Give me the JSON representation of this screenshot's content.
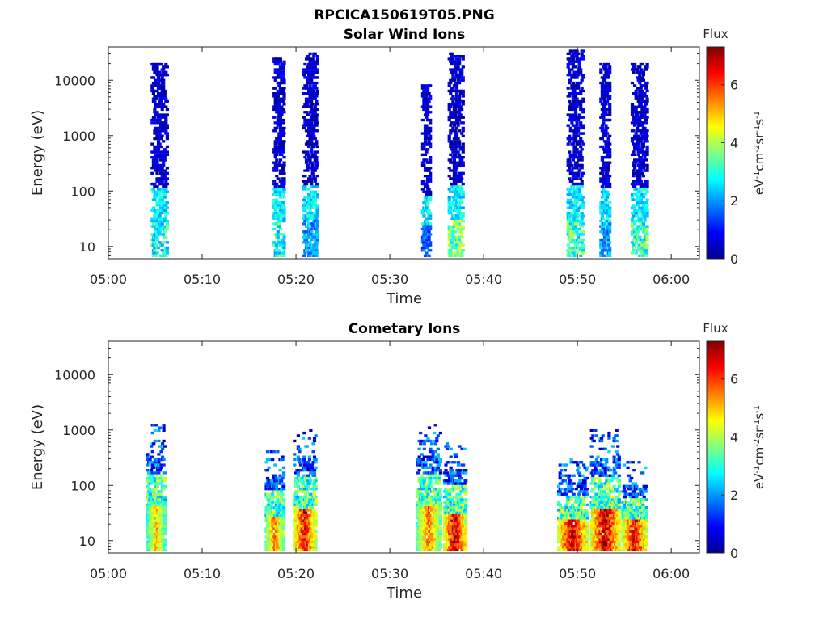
{
  "figure": {
    "main_title": "RPCICA150619T05.PNG"
  },
  "chart_data": [
    {
      "type": "heatmap",
      "title": "Solar Wind Ions",
      "xlabel": "Time",
      "ylabel": "Energy (eV)",
      "y_scale": "log",
      "xlim": [
        "05:00",
        "06:03"
      ],
      "ylim": [
        6,
        40000
      ],
      "x_ticks": [
        "05:00",
        "05:10",
        "05:20",
        "05:30",
        "05:40",
        "05:50",
        "06:00"
      ],
      "y_ticks": [
        10,
        100,
        1000,
        10000
      ],
      "y_tick_labels": [
        "10",
        "100",
        "1000",
        "10000"
      ],
      "colorbar": {
        "title": "Flux",
        "label": "eV-1cm-2sr-1s-1",
        "range": [
          0,
          7.3
        ],
        "ticks": [
          "0",
          "2",
          "4",
          "6"
        ],
        "colormap": "jet"
      },
      "bursts": [
        {
          "start": "05:04:30",
          "end": "05:06:10",
          "max_energy_eV": 20000,
          "peak_flux_level": 3.5
        },
        {
          "start": "05:17:30",
          "end": "05:18:40",
          "max_energy_eV": 25000,
          "peak_flux_level": 3.6
        },
        {
          "start": "05:20:40",
          "end": "05:22:10",
          "max_energy_eV": 30000,
          "peak_flux_level": 2.5
        },
        {
          "start": "05:33:20",
          "end": "05:34:10",
          "max_energy_eV": 8000,
          "peak_flux_level": 2.0
        },
        {
          "start": "05:36:10",
          "end": "05:37:40",
          "max_energy_eV": 30000,
          "peak_flux_level": 4.5
        },
        {
          "start": "05:48:50",
          "end": "05:50:30",
          "max_energy_eV": 35000,
          "peak_flux_level": 4.0
        },
        {
          "start": "05:52:20",
          "end": "05:53:20",
          "max_energy_eV": 20000,
          "peak_flux_level": 2.5
        },
        {
          "start": "05:55:40",
          "end": "05:57:20",
          "max_energy_eV": 20000,
          "peak_flux_level": 4.0
        }
      ]
    },
    {
      "type": "heatmap",
      "title": "Cometary Ions",
      "xlabel": "Time",
      "ylabel": "Energy (eV)",
      "y_scale": "log",
      "xlim": [
        "05:00",
        "06:03"
      ],
      "ylim": [
        6,
        40000
      ],
      "x_ticks": [
        "05:00",
        "05:10",
        "05:20",
        "05:30",
        "05:40",
        "05:50",
        "06:00"
      ],
      "y_ticks": [
        10,
        100,
        1000,
        10000
      ],
      "y_tick_labels": [
        "10",
        "100",
        "1000",
        "10000"
      ],
      "colorbar": {
        "title": "Flux",
        "label": "eV-1cm-2sr-1s-1",
        "range": [
          0,
          7.3
        ],
        "ticks": [
          "0",
          "2",
          "4",
          "6"
        ],
        "colormap": "jet"
      },
      "bursts": [
        {
          "start": "05:04:00",
          "end": "05:06:00",
          "max_energy_eV": 1200,
          "peak_flux_level": 5.0
        },
        {
          "start": "05:16:40",
          "end": "05:18:40",
          "max_energy_eV": 400,
          "peak_flux_level": 5.5
        },
        {
          "start": "05:19:40",
          "end": "05:22:00",
          "max_energy_eV": 1000,
          "peak_flux_level": 6.5
        },
        {
          "start": "05:32:50",
          "end": "05:35:20",
          "max_energy_eV": 1200,
          "peak_flux_level": 5.5
        },
        {
          "start": "05:35:40",
          "end": "05:38:00",
          "max_energy_eV": 600,
          "peak_flux_level": 6.8
        },
        {
          "start": "05:47:50",
          "end": "05:51:00",
          "max_energy_eV": 300,
          "peak_flux_level": 6.8
        },
        {
          "start": "05:51:20",
          "end": "05:54:20",
          "max_energy_eV": 1000,
          "peak_flux_level": 7.0
        },
        {
          "start": "05:54:40",
          "end": "05:57:20",
          "max_energy_eV": 250,
          "peak_flux_level": 6.5
        }
      ]
    }
  ]
}
